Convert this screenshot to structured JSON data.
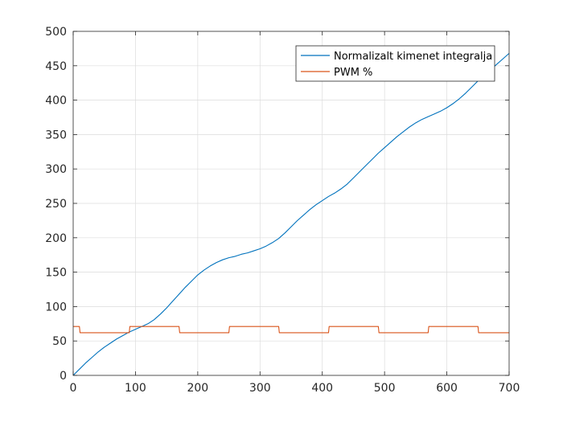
{
  "chart_data": {
    "type": "line",
    "title": "",
    "xlabel": "",
    "ylabel": "",
    "xlim": [
      0,
      700
    ],
    "ylim": [
      0,
      500
    ],
    "xticks": [
      0,
      100,
      200,
      300,
      400,
      500,
      600,
      700
    ],
    "yticks": [
      0,
      50,
      100,
      150,
      200,
      250,
      300,
      350,
      400,
      450,
      500
    ],
    "grid": true,
    "legend_location": "top-right",
    "series": [
      {
        "name": "Normalizalt kimenet integralja",
        "color": "#0072BD",
        "x": [
          0,
          10,
          20,
          30,
          40,
          50,
          60,
          70,
          80,
          90,
          100,
          110,
          120,
          130,
          140,
          150,
          160,
          170,
          180,
          190,
          200,
          210,
          220,
          230,
          240,
          250,
          260,
          270,
          280,
          290,
          300,
          310,
          320,
          330,
          340,
          350,
          360,
          370,
          380,
          390,
          400,
          410,
          420,
          430,
          440,
          450,
          460,
          470,
          480,
          490,
          500,
          510,
          520,
          530,
          540,
          550,
          560,
          570,
          580,
          590,
          600,
          610,
          620,
          630,
          640,
          650,
          660,
          670,
          680,
          690,
          700
        ],
        "y": [
          0,
          9,
          18,
          26,
          34,
          41,
          47,
          53,
          58,
          63,
          67,
          71,
          75,
          81,
          89,
          98,
          108,
          118,
          128,
          137,
          146,
          153,
          159,
          164,
          168,
          171,
          173,
          176,
          178,
          181,
          184,
          188,
          193,
          199,
          207,
          216,
          225,
          233,
          241,
          248,
          254,
          260,
          265,
          271,
          278,
          287,
          296,
          305,
          314,
          323,
          331,
          339,
          347,
          354,
          361,
          367,
          372,
          376,
          380,
          384,
          389,
          395,
          402,
          410,
          419,
          428,
          436,
          444,
          452,
          460,
          468
        ]
      },
      {
        "name": "PWM %",
        "color": "#D95319",
        "x": [
          0,
          10,
          11,
          90,
          91,
          170,
          171,
          250,
          251,
          330,
          331,
          410,
          411,
          490,
          491,
          570,
          571,
          650,
          651,
          700
        ],
        "y": [
          71,
          71,
          62,
          62,
          71,
          71,
          62,
          62,
          71,
          71,
          62,
          62,
          71,
          71,
          62,
          62,
          71,
          71,
          62,
          62
        ]
      }
    ]
  }
}
